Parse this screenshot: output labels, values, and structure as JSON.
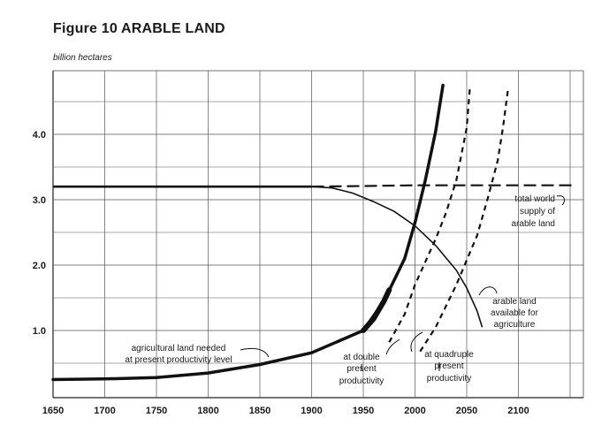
{
  "chart_data": {
    "type": "line",
    "title": "Figure 10 ARABLE LAND",
    "ylabel": "billion hectares",
    "xlabel": "",
    "xlim": [
      1650,
      2160
    ],
    "ylim": [
      0,
      4.9
    ],
    "x_ticks": [
      1650,
      1700,
      1750,
      1800,
      1850,
      1900,
      1950,
      2000,
      2050,
      2100
    ],
    "y_ticks": [
      1.0,
      2.0,
      3.0,
      4.0
    ],
    "x_tick_labels": [
      "1650",
      "1700",
      "1750",
      "1800",
      "1850",
      "1900",
      "1950",
      "2000",
      "2050",
      "2100"
    ],
    "y_tick_labels": [
      "1.0",
      "2.0",
      "3.0",
      "4.0"
    ],
    "grid": true,
    "legend": "none",
    "series": [
      {
        "key": "land_available",
        "style": "solid",
        "x": [
          1650,
          1700,
          1800,
          1900,
          1920,
          1940,
          1960,
          1980,
          2000,
          2020,
          2040,
          2050,
          2060,
          2065
        ],
        "y": [
          3.2,
          3.2,
          3.2,
          3.2,
          3.18,
          3.1,
          2.97,
          2.82,
          2.6,
          2.3,
          1.92,
          1.65,
          1.3,
          1.05
        ]
      },
      {
        "key": "total_supply",
        "style": "dashed",
        "x": [
          1900,
          1950,
          2000,
          2050,
          2100,
          2155
        ],
        "y": [
          3.2,
          3.21,
          3.22,
          3.22,
          3.22,
          3.22
        ]
      },
      {
        "key": "needed_present",
        "style": "solid-thick",
        "x": [
          1650,
          1700,
          1750,
          1800,
          1850,
          1900,
          1950,
          1970,
          1990,
          2000,
          2010,
          2020,
          2027
        ],
        "y": [
          0.25,
          0.26,
          0.28,
          0.35,
          0.48,
          0.66,
          1.0,
          1.45,
          2.1,
          2.65,
          3.3,
          4.05,
          4.75
        ]
      },
      {
        "key": "needed_double",
        "style": "dashed",
        "x": [
          1975,
          1990,
          2000,
          2010,
          2020,
          2030,
          2040,
          2050,
          2053
        ],
        "y": [
          0.82,
          1.25,
          1.7,
          2.05,
          2.4,
          2.8,
          3.3,
          4.1,
          4.7
        ]
      },
      {
        "key": "needed_quadruple",
        "style": "dashed",
        "x": [
          2005,
          2020,
          2040,
          2060,
          2070,
          2080,
          2085,
          2090
        ],
        "y": [
          0.68,
          1.05,
          1.7,
          2.45,
          3.0,
          3.6,
          4.1,
          4.7
        ]
      }
    ],
    "annotations": [
      {
        "lines": [
          "total world",
          "supply of",
          "arable land"
        ]
      },
      {
        "lines": [
          "arable land",
          "available for",
          "agriculture"
        ]
      },
      {
        "lines": [
          "agricultural land needed",
          "at present productivity level"
        ]
      },
      {
        "lines": [
          "at double",
          "present",
          "productivity"
        ]
      },
      {
        "lines": [
          "at quadruple",
          "present",
          "productivity"
        ]
      }
    ]
  }
}
